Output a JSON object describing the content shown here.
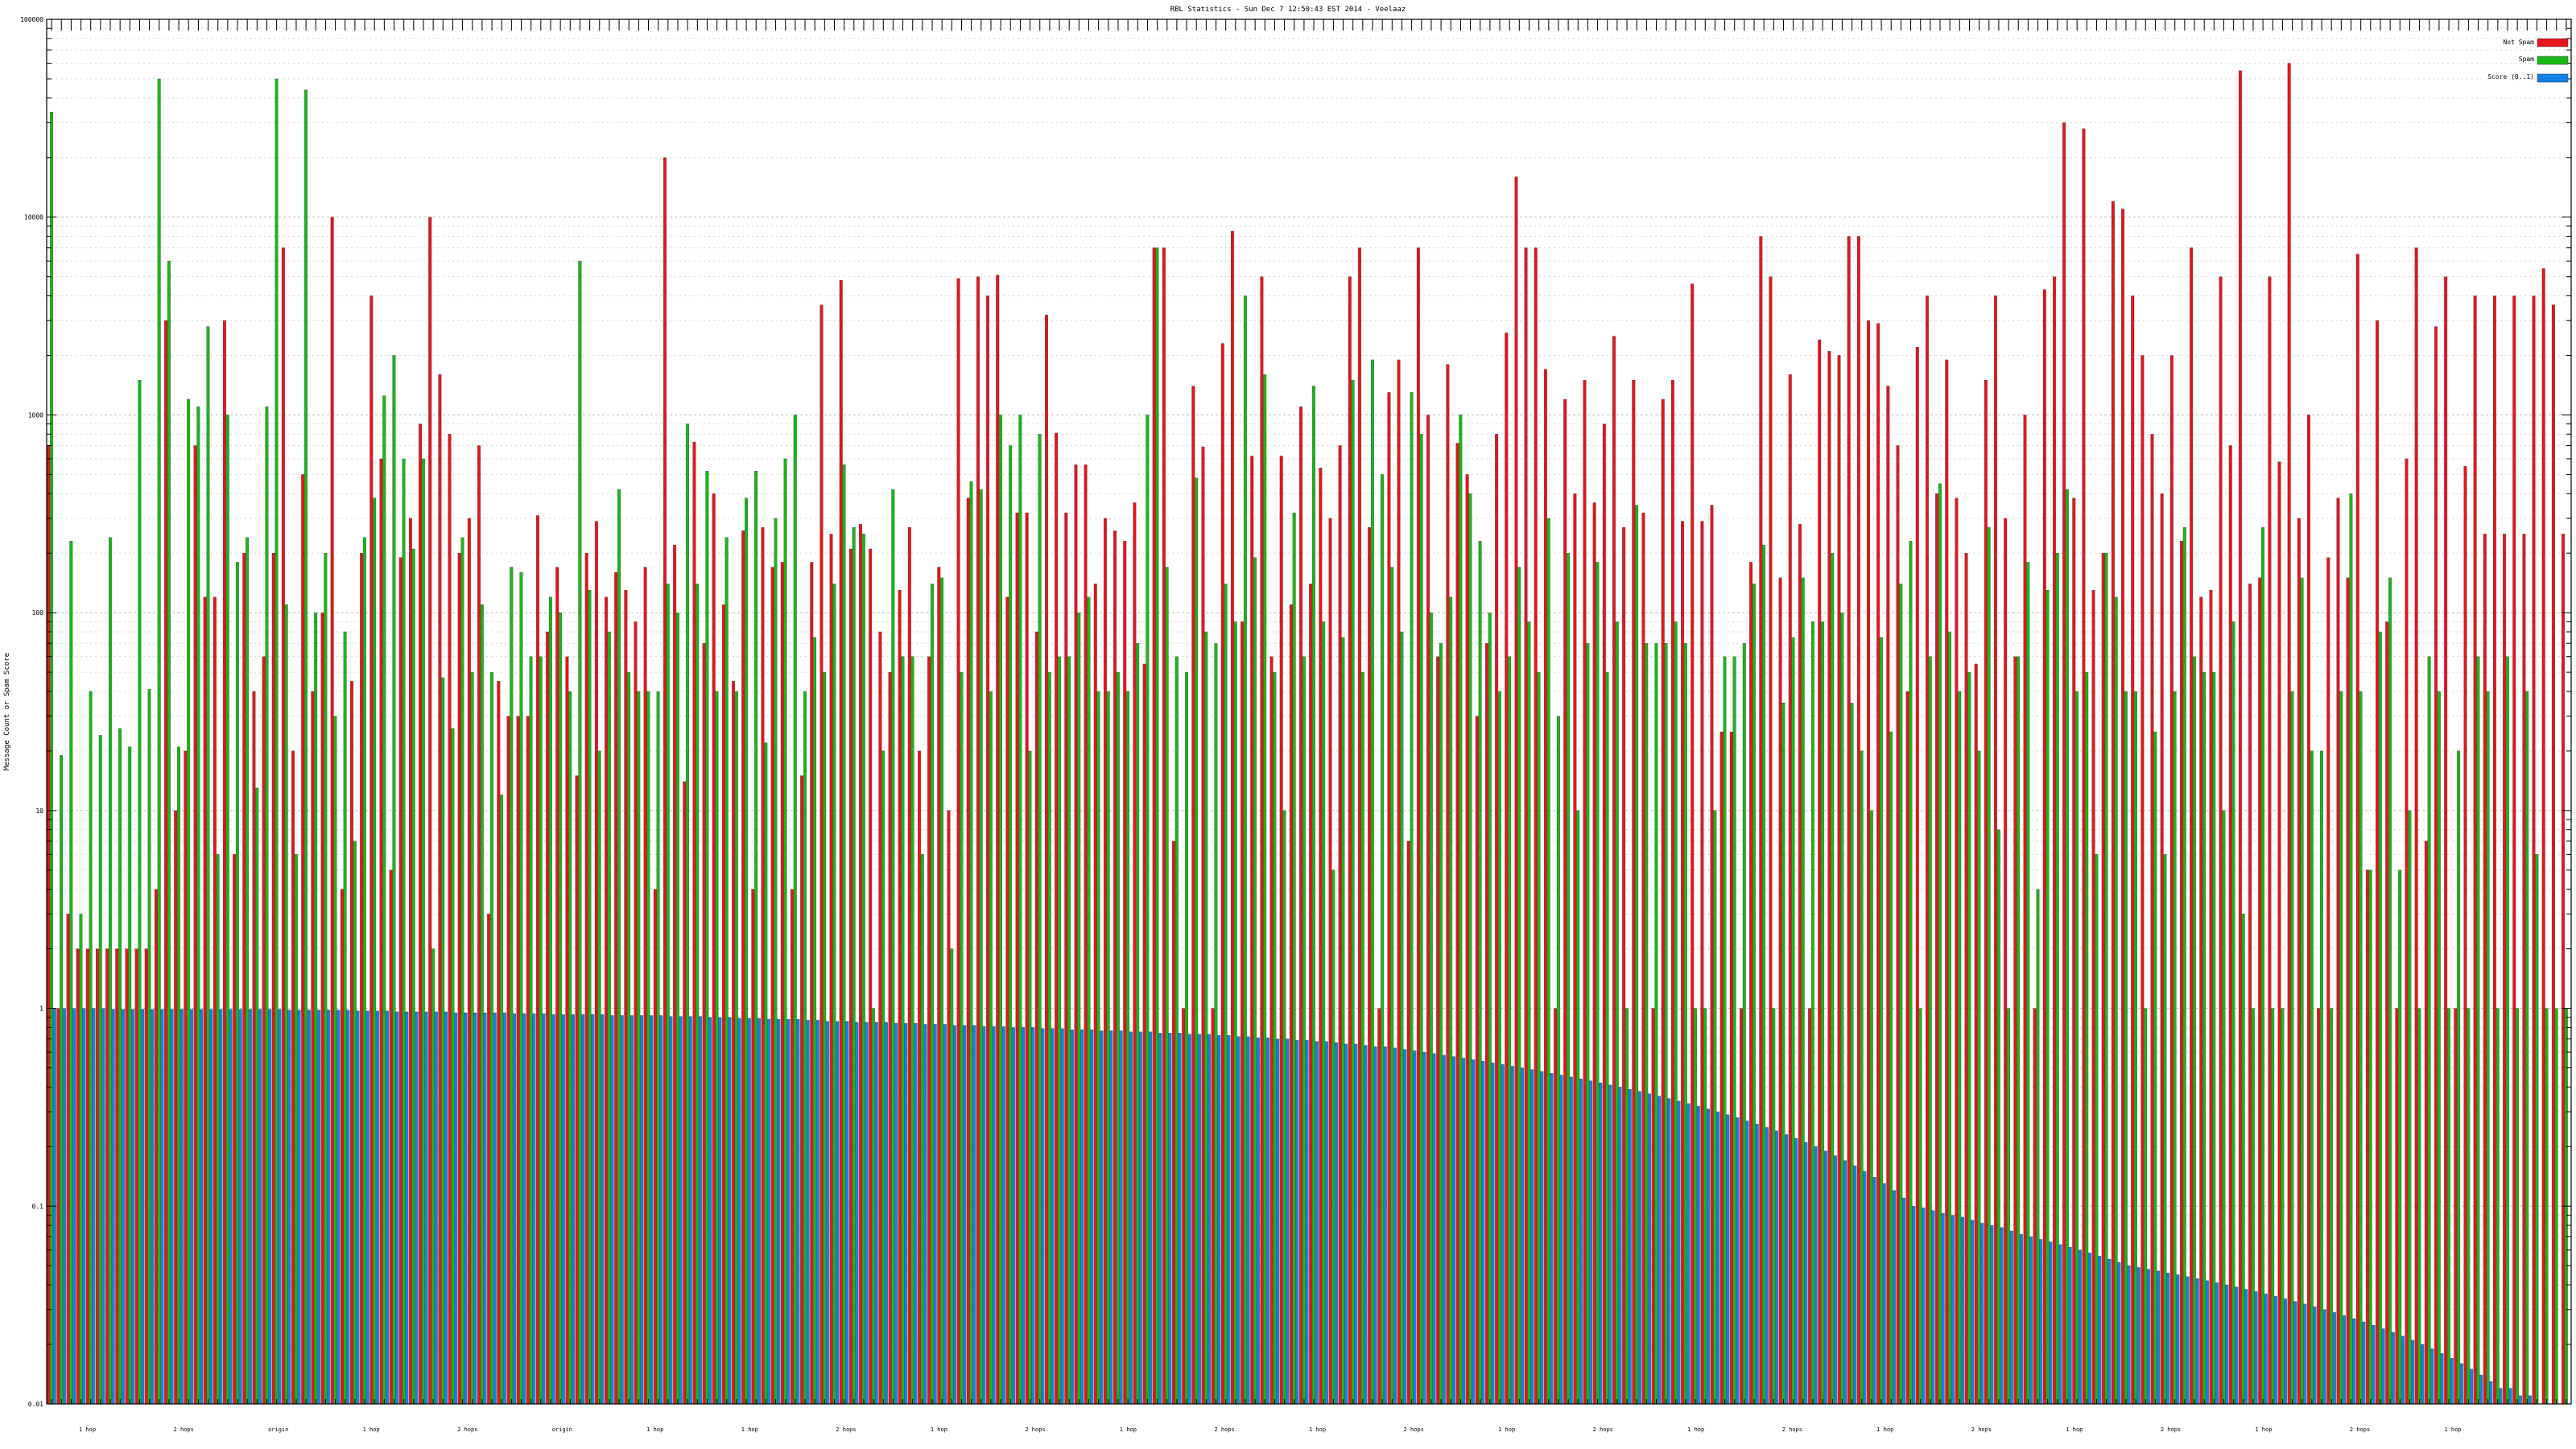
{
  "chart_data": {
    "type": "bar",
    "title": "RBL Statistics - Sun Dec  7 12:50:43 EST 2014 - Veelaaz",
    "ylabel": "Message Count or Spam Score",
    "xlabel": "",
    "yscale": "log",
    "ylim": [
      0.01,
      100000
    ],
    "y_ticks": [
      0.01,
      0.1,
      1,
      10,
      100,
      1000,
      10000,
      100000
    ],
    "y_tick_labels": [
      "0.01",
      "0.1",
      "1",
      "10",
      "100",
      "1000",
      "10000",
      "100000"
    ],
    "grid": true,
    "legend_position": "top-right",
    "series": [
      {
        "name": "Not Spam",
        "color": "#e8141c",
        "values": [
          700,
          1,
          3,
          2,
          2,
          2,
          2,
          2,
          2,
          2,
          2,
          4,
          3000,
          10,
          20,
          700,
          120,
          120,
          3000,
          6,
          200,
          40,
          60,
          200,
          7000,
          20,
          500,
          40,
          100,
          10000,
          4,
          45,
          200,
          4000,
          600,
          5,
          190,
          300,
          900,
          10000,
          1600,
          800,
          200,
          300,
          700,
          3,
          45,
          30,
          30,
          30,
          310,
          80,
          170,
          60,
          15,
          200,
          290,
          120,
          160,
          130,
          90,
          170,
          4,
          20000,
          220,
          14,
          730,
          70,
          400,
          110,
          45,
          260,
          4,
          270,
          170,
          180,
          4,
          15,
          180,
          3600,
          250,
          4800,
          210,
          280,
          210,
          80,
          50,
          130,
          270,
          20,
          60,
          170,
          10,
          4900,
          380,
          5000,
          4000,
          5100,
          120,
          320,
          320,
          80,
          3200,
          810,
          320,
          560,
          560,
          140,
          300,
          260,
          230,
          360,
          55,
          7000,
          7000,
          7,
          1,
          1400,
          690,
          1,
          2300,
          8500,
          90,
          620,
          5000,
          60,
          620,
          110,
          1100,
          140,
          540,
          300,
          700,
          5000,
          7000,
          270,
          1,
          1300,
          1900,
          7,
          7000,
          1000,
          60,
          1800,
          720,
          500,
          30,
          70,
          800,
          2600,
          16000,
          7000,
          7000,
          1700,
          1,
          1200,
          400,
          1500,
          360,
          900,
          2500,
          270,
          1500,
          320,
          1,
          1200,
          1500,
          290,
          4600,
          290,
          350,
          25,
          25,
          1,
          180,
          8000,
          5000,
          150,
          1600,
          280,
          1,
          2400,
          2100,
          2000,
          8000,
          8000,
          3000,
          2900,
          1400,
          700,
          40,
          2200,
          4000,
          400,
          1900,
          380,
          200,
          55,
          1500,
          4000,
          300,
          60,
          1000,
          1,
          4300,
          5000,
          30000,
          380,
          28000,
          130,
          200,
          12000,
          11000,
          4000,
          2000,
          800,
          400,
          2000,
          230,
          7000,
          120,
          130,
          5000,
          700,
          55000,
          140,
          150,
          5000,
          580,
          60000,
          300,
          1000,
          1,
          190,
          380,
          150,
          6500,
          5,
          3000,
          90,
          1,
          600,
          7000,
          7,
          2800,
          5000,
          1,
          550,
          4000,
          250,
          4000,
          250,
          4000,
          250,
          4000,
          5500,
          3600,
          250
        ]
      },
      {
        "name": "Spam",
        "color": "#18b818",
        "values": [
          34000,
          19,
          230,
          3,
          40,
          24,
          240,
          26,
          21,
          1500,
          41,
          50000,
          6000,
          21,
          1200,
          1100,
          2800,
          6,
          1000,
          180,
          240,
          13,
          1100,
          50000,
          110,
          6,
          44000,
          100,
          200,
          30,
          80,
          7,
          240,
          380,
          1250,
          2000,
          600,
          210,
          600,
          2,
          47,
          26,
          240,
          50,
          110,
          50,
          12,
          170,
          160,
          60,
          60,
          120,
          100,
          40,
          6000,
          130,
          20,
          80,
          420,
          50,
          40,
          40,
          40,
          140,
          100,
          900,
          140,
          520,
          40,
          240,
          40,
          380,
          520,
          22,
          300,
          600,
          1000,
          40,
          75,
          50,
          140,
          560,
          270,
          250,
          1,
          20,
          420,
          60,
          60,
          6,
          140,
          150,
          2,
          50,
          460,
          420,
          40,
          1000,
          700,
          1000,
          20,
          800,
          50,
          60,
          60,
          100,
          120,
          40,
          40,
          50,
          40,
          70,
          1000,
          7000,
          170,
          60,
          50,
          480,
          80,
          70,
          140,
          90,
          4000,
          190,
          1600,
          50,
          10,
          320,
          60,
          1400,
          90,
          5,
          75,
          1500,
          50,
          1900,
          500,
          170,
          80,
          1300,
          800,
          100,
          70,
          120,
          1000,
          400,
          230,
          100,
          40,
          60,
          170,
          90,
          50,
          300,
          30,
          200,
          10,
          70,
          180,
          50,
          90,
          1,
          350,
          70,
          70,
          70,
          90,
          70,
          1,
          1,
          10,
          60,
          60,
          70,
          140,
          220,
          1,
          35,
          75,
          150,
          90,
          90,
          200,
          100,
          35,
          20,
          10,
          75,
          25,
          140,
          230,
          1,
          60,
          450,
          80,
          40,
          50,
          20,
          270,
          8,
          1,
          60,
          180,
          4,
          130,
          200,
          420,
          40,
          50,
          6,
          200,
          120,
          40,
          40,
          1,
          25,
          6,
          40,
          270,
          60,
          50,
          50,
          10,
          90,
          3,
          1,
          270,
          1,
          1,
          40,
          150,
          20,
          20,
          1,
          40,
          400,
          40,
          5,
          80,
          150,
          5,
          10,
          1,
          60,
          40,
          1,
          20,
          1,
          60,
          40,
          1,
          60,
          1,
          40,
          6,
          1,
          1,
          1,
          13
        ]
      },
      {
        "name": "Score (0..1)",
        "color": "#1480e8",
        "values": [
          1,
          1,
          1,
          1,
          1,
          1,
          0.99,
          0.99,
          0.99,
          0.99,
          0.99,
          0.99,
          0.99,
          0.99,
          0.99,
          0.99,
          0.99,
          0.99,
          0.99,
          0.99,
          0.99,
          0.99,
          0.99,
          0.99,
          0.98,
          0.98,
          0.98,
          0.98,
          0.98,
          0.98,
          0.98,
          0.97,
          0.97,
          0.97,
          0.97,
          0.96,
          0.96,
          0.96,
          0.96,
          0.96,
          0.96,
          0.95,
          0.95,
          0.95,
          0.95,
          0.95,
          0.95,
          0.94,
          0.94,
          0.94,
          0.94,
          0.93,
          0.93,
          0.93,
          0.93,
          0.93,
          0.93,
          0.92,
          0.92,
          0.92,
          0.92,
          0.92,
          0.92,
          0.91,
          0.91,
          0.91,
          0.91,
          0.9,
          0.9,
          0.9,
          0.89,
          0.89,
          0.89,
          0.88,
          0.88,
          0.88,
          0.88,
          0.87,
          0.87,
          0.86,
          0.86,
          0.86,
          0.85,
          0.85,
          0.85,
          0.85,
          0.84,
          0.84,
          0.84,
          0.83,
          0.83,
          0.83,
          0.82,
          0.82,
          0.82,
          0.81,
          0.81,
          0.81,
          0.8,
          0.8,
          0.8,
          0.79,
          0.79,
          0.79,
          0.78,
          0.78,
          0.78,
          0.77,
          0.77,
          0.77,
          0.76,
          0.76,
          0.76,
          0.75,
          0.75,
          0.75,
          0.74,
          0.74,
          0.74,
          0.73,
          0.73,
          0.72,
          0.72,
          0.71,
          0.71,
          0.7,
          0.7,
          0.69,
          0.69,
          0.68,
          0.68,
          0.67,
          0.66,
          0.66,
          0.65,
          0.64,
          0.64,
          0.63,
          0.62,
          0.61,
          0.6,
          0.59,
          0.58,
          0.57,
          0.56,
          0.55,
          0.54,
          0.53,
          0.52,
          0.51,
          0.5,
          0.49,
          0.48,
          0.47,
          0.46,
          0.45,
          0.44,
          0.43,
          0.42,
          0.41,
          0.4,
          0.39,
          0.38,
          0.37,
          0.36,
          0.35,
          0.34,
          0.33,
          0.32,
          0.31,
          0.3,
          0.29,
          0.28,
          0.27,
          0.26,
          0.25,
          0.24,
          0.23,
          0.22,
          0.21,
          0.2,
          0.19,
          0.18,
          0.17,
          0.16,
          0.15,
          0.14,
          0.13,
          0.12,
          0.11,
          0.1,
          0.098,
          0.095,
          0.092,
          0.09,
          0.088,
          0.085,
          0.082,
          0.08,
          0.078,
          0.075,
          0.072,
          0.07,
          0.068,
          0.066,
          0.064,
          0.062,
          0.06,
          0.058,
          0.056,
          0.054,
          0.052,
          0.05,
          0.049,
          0.048,
          0.047,
          0.046,
          0.045,
          0.044,
          0.043,
          0.042,
          0.041,
          0.04,
          0.039,
          0.038,
          0.037,
          0.036,
          0.035,
          0.034,
          0.033,
          0.032,
          0.031,
          0.03,
          0.029,
          0.028,
          0.027,
          0.026,
          0.025,
          0.024,
          0.023,
          0.022,
          0.021,
          0.02,
          0.019,
          0.018,
          0.017,
          0.016,
          0.015,
          0.014,
          0.013,
          0.012,
          0.012,
          0.011,
          0.011
        ]
      }
    ],
    "group_labels": [
      "1 hop",
      "2 hops",
      "origin",
      "1 hop",
      "2 hops",
      "origin",
      "1 hop",
      "1 hop",
      "2 hops",
      "1 hop",
      "2 hops",
      "1 hop",
      "2 hops",
      "1 hop",
      "2 hops",
      "1 hop",
      "2 hops",
      "1 hop",
      "2 hops",
      "1 hop",
      "2 hops",
      "1 hop",
      "2 hops",
      "1 hop",
      "2 hops",
      "1 hop"
    ]
  }
}
